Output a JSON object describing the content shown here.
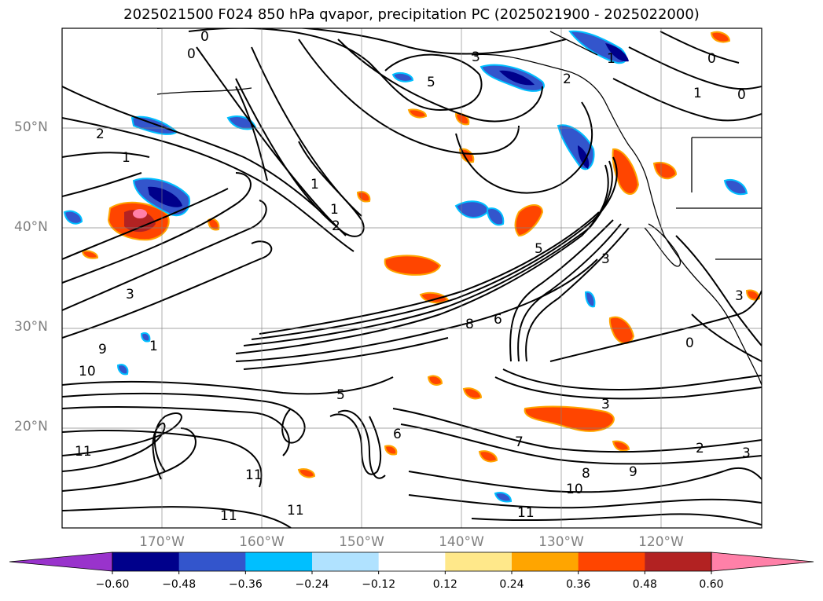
{
  "title": "2025021500 F024 850 hPa qvapor, precipitation PC (2025021900 - 2025022000)",
  "map": {
    "projection": "plate-carree",
    "lon_range": [
      -180,
      -110
    ],
    "lat_range": [
      10,
      60
    ],
    "lat_labels": [
      "50°N",
      "40°N",
      "30°N",
      "20°N"
    ],
    "lon_labels": [
      "170°W",
      "160°W",
      "150°W",
      "140°W",
      "130°W",
      "120°W"
    ],
    "contour_labels": [
      "0",
      "0",
      "0",
      "0",
      "1",
      "1",
      "2",
      "3",
      "5",
      "2",
      "1",
      "1",
      "1",
      "2",
      "3",
      "3",
      "5",
      "6",
      "8",
      "1",
      "9",
      "10",
      "11",
      "11",
      "11",
      "11",
      "5",
      "6",
      "7",
      "8",
      "9",
      "10",
      "11",
      "2",
      "3",
      "0",
      "3",
      "3"
    ]
  },
  "colorbar": {
    "ticks": [
      "−0.60",
      "−0.48",
      "−0.36",
      "−0.24",
      "−0.12",
      "0.12",
      "0.24",
      "0.36",
      "0.48",
      "0.60"
    ],
    "colors": [
      "#9933cc",
      "#00008b",
      "#3355cc",
      "#00bfff",
      "#b0e2ff",
      "#ffffff",
      "#ffe88a",
      "#ffa500",
      "#ff4500",
      "#b22222",
      "#ff80a8"
    ],
    "extend": "both"
  }
}
